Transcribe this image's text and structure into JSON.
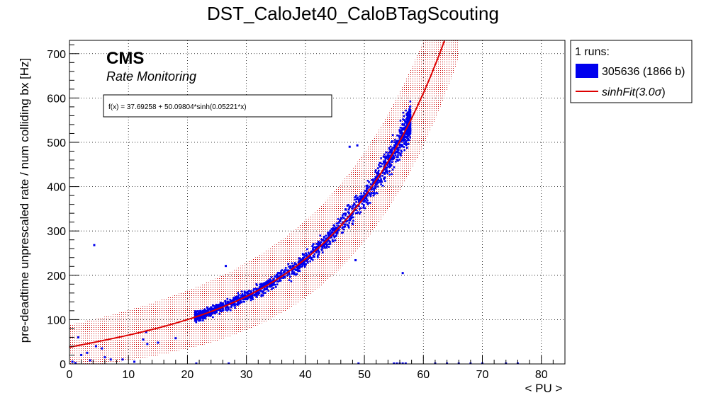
{
  "chart_data": {
    "type": "scatter",
    "title": "DST_CaloJet40_CaloBTagScouting",
    "xlabel": "< PU >",
    "ylabel": "pre-deadtime unprescaled rate / num colliding bx [Hz]",
    "xlim": [
      0,
      84
    ],
    "ylim": [
      0,
      730
    ],
    "xticks": [
      0,
      10,
      20,
      30,
      40,
      50,
      60,
      70,
      80
    ],
    "yticks": [
      0,
      100,
      200,
      300,
      400,
      500,
      600,
      700
    ],
    "grid": true,
    "legend_position": "outside-right-top",
    "experiment_label": "CMS",
    "experiment_sublabel": "Rate Monitoring",
    "fit_formula_text": "f(x) = 37.69258 + 50.09804*sinh(0.05221*x)",
    "fit": {
      "function": "sinh",
      "a": 37.69258,
      "b": 50.09804,
      "c": 0.05221,
      "band_sigma": 3.0
    },
    "legend": {
      "header": "1 runs:",
      "series_label": "305636 (1866 b)",
      "fit_label": "sinhFit(3.0",
      "fit_label_sigma": "σ",
      "fit_label_close": ")"
    },
    "series": [
      {
        "name": "305636 (1866 b)",
        "color": "#0000ee",
        "x_range": [
          21.3,
          57.8
        ],
        "n_points": 1866
      }
    ],
    "outliers": [
      {
        "x": 4.2,
        "y": 268
      },
      {
        "x": 26.5,
        "y": 221
      },
      {
        "x": 47.5,
        "y": 490
      },
      {
        "x": 48.8,
        "y": 493
      },
      {
        "x": 48.5,
        "y": 234
      },
      {
        "x": 56.5,
        "y": 205
      },
      {
        "x": 13,
        "y": 72
      },
      {
        "x": 15,
        "y": 48
      },
      {
        "x": 12.5,
        "y": 55
      },
      {
        "x": 13.2,
        "y": 45
      },
      {
        "x": 18,
        "y": 58
      },
      {
        "x": 1.5,
        "y": 60
      },
      {
        "x": 3.5,
        "y": 8
      },
      {
        "x": 4.5,
        "y": 40
      },
      {
        "x": 5.5,
        "y": 35
      },
      {
        "x": 7,
        "y": 10
      },
      {
        "x": 9,
        "y": 10
      },
      {
        "x": 11,
        "y": 5
      },
      {
        "x": 2,
        "y": 20
      },
      {
        "x": 3,
        "y": 25
      },
      {
        "x": 6,
        "y": 15
      },
      {
        "x": 0.5,
        "y": 5
      },
      {
        "x": 1,
        "y": 2
      },
      {
        "x": 21.5,
        "y": 1
      },
      {
        "x": 27,
        "y": 1
      },
      {
        "x": 49,
        "y": 1
      },
      {
        "x": 55,
        "y": 1
      },
      {
        "x": 55.5,
        "y": 1
      },
      {
        "x": 56,
        "y": 1
      },
      {
        "x": 56.5,
        "y": 1
      },
      {
        "x": 57,
        "y": 1
      },
      {
        "x": 62,
        "y": 1
      },
      {
        "x": 64,
        "y": 1
      },
      {
        "x": 66,
        "y": 1
      },
      {
        "x": 68,
        "y": 1
      },
      {
        "x": 70,
        "y": 1
      },
      {
        "x": 74,
        "y": 1
      },
      {
        "x": 76,
        "y": 1
      }
    ],
    "colors": {
      "points": "#0000ee",
      "fit_line": "#dd0000",
      "band": "#cc0000",
      "grid": "#000000"
    }
  }
}
